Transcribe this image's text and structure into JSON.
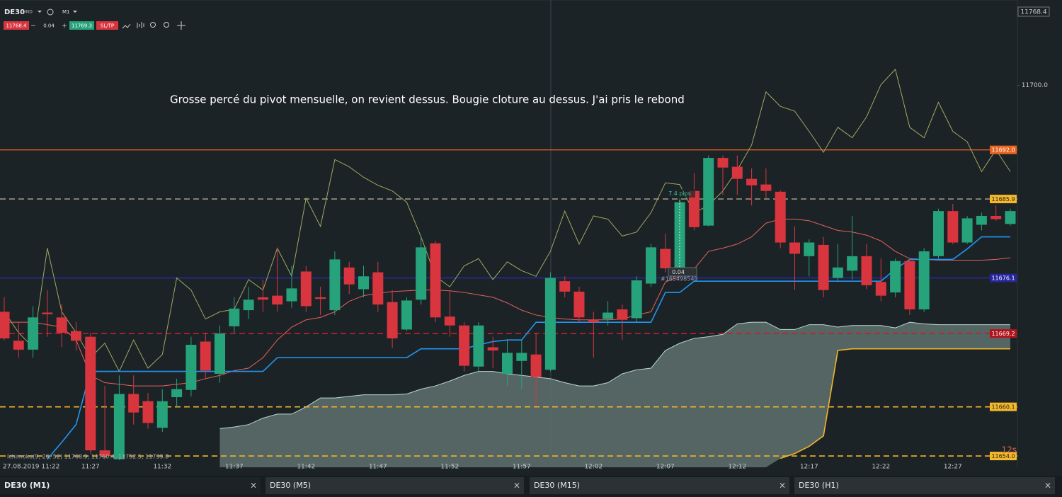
{
  "toolbar": {
    "symbol": "DE30",
    "market": "IND",
    "timeframe": "M1",
    "sell_price": "11768.4",
    "minus": "−",
    "volume": "0.04",
    "plus": "+",
    "buy_price": "11769.3",
    "sltp": "SL/TP"
  },
  "chart_data": {
    "type": "candlestick",
    "annotation": "Grosse percé du pivot mensuelle, on revient dessus. Bougie cloture au dessus. J'ai pris le rebond",
    "indicator_legend": "Ichimoku(9, 26, 52) 11768.9, 11760.4, 11752.5, 11739.8",
    "price_label": "11768.4",
    "countdown": "12s",
    "trade": {
      "pips": "7.4 pips",
      "volume": "0.04",
      "id": "#165498549"
    },
    "up_color": "#26a37a",
    "down_color": "#d9353f",
    "categories": [
      null,
      "27.08.2019 11:22",
      null,
      null,
      null,
      null,
      "11:27",
      null,
      null,
      null,
      null,
      "11:32",
      null,
      null,
      null,
      null,
      "11:37",
      null,
      null,
      null,
      null,
      "11:42",
      null,
      null,
      null,
      null,
      "11:47",
      null,
      null,
      null,
      null,
      "11:52",
      null,
      null,
      null,
      null,
      "11:57",
      null,
      null,
      null,
      null,
      "12:02",
      null,
      null,
      null,
      null,
      "12:07",
      null,
      null,
      null,
      null,
      "12:12",
      null,
      null,
      null,
      null,
      "12:17",
      null,
      null,
      null,
      null,
      "12:22",
      null,
      null,
      null,
      null,
      "12:27",
      null,
      null,
      null,
      null
    ],
    "open": [
      11671.9,
      11668.3,
      11667.2,
      11671.8,
      11671.2,
      11669.5,
      11668.8,
      11654.7,
      11653.6,
      11661.7,
      11660.8,
      11657.5,
      11661.3,
      11662.2,
      11668.2,
      11664.2,
      11670.1,
      11672.1,
      11673.7,
      11673.9,
      11673.2,
      11676.9,
      11673.7,
      11672.1,
      11677.4,
      11674.7,
      11676.8,
      11673.1,
      11669.7,
      11673.4,
      11680.4,
      11671.3,
      11670.2,
      11665.1,
      11667.5,
      11664.2,
      11665.8,
      11666.6,
      11664.7,
      11675.7,
      11674.4,
      11670.9,
      11671.0,
      11672.2,
      11671.1,
      11675.4,
      11679.7,
      11677.4,
      11686.9,
      11682.6,
      11691.0,
      11689.9,
      11688.4,
      11687.7,
      11686.8,
      11680.5,
      11678.8,
      11680.2,
      11676.1,
      11677.0,
      11678.8,
      11675.6,
      11674.3,
      11678.2,
      11672.2,
      11678.8,
      11684.4,
      11680.5,
      11682.7,
      11683.8,
      11682.8
    ],
    "high": [
      11673.7,
      11670.6,
      11672.6,
      11674.6,
      11672.8,
      11670.6,
      11669.3,
      11662.7,
      11664.0,
      11664.0,
      11661.8,
      11662.3,
      11663.6,
      11668.8,
      11669.3,
      11670.2,
      11673.7,
      11675.0,
      11675.9,
      11679.8,
      11677.6,
      11677.6,
      11675.0,
      11679.4,
      11678.1,
      11677.6,
      11678.1,
      11674.6,
      11673.7,
      11681.2,
      11680.7,
      11674.6,
      11670.6,
      11670.6,
      11668.8,
      11668.4,
      11668.4,
      11669.3,
      11676.8,
      11676.3,
      11675.0,
      11671.9,
      11673.2,
      11672.8,
      11676.3,
      11680.3,
      11681.6,
      11686.0,
      11689.1,
      11691.3,
      11691.3,
      11691.3,
      11689.7,
      11689.7,
      11687.0,
      11682.5,
      11680.9,
      11681.2,
      11680.3,
      11683.8,
      11680.3,
      11678.5,
      11678.5,
      11678.5,
      11679.8,
      11684.7,
      11685.3,
      11683.8,
      11684.2,
      11685.1,
      11684.7
    ],
    "low": [
      11668.4,
      11666.2,
      11666.2,
      11668.8,
      11667.5,
      11667.1,
      11654.3,
      11653.6,
      11653.5,
      11657.9,
      11657.4,
      11657.0,
      11660.1,
      11661.4,
      11663.6,
      11663.1,
      11669.3,
      11671.0,
      11671.9,
      11671.9,
      11672.4,
      11671.9,
      11671.5,
      11671.5,
      11674.1,
      11673.7,
      11671.9,
      11667.4,
      11669.5,
      11672.8,
      11670.6,
      11668.8,
      11664.5,
      11664.5,
      11664.9,
      11662.7,
      11662.3,
      11660.2,
      11664.5,
      11673.7,
      11670.6,
      11666.2,
      11670.2,
      11668.4,
      11670.6,
      11675.0,
      11676.8,
      11677.2,
      11682.0,
      11682.5,
      11686.4,
      11686.4,
      11685.1,
      11686.0,
      11679.8,
      11674.6,
      11676.3,
      11673.7,
      11675.6,
      11675.9,
      11674.7,
      11673.2,
      11673.7,
      11671.5,
      11671.9,
      11678.5,
      11680.3,
      11680.3,
      11682.0,
      11683.2,
      11682.6
    ],
    "close": [
      11668.6,
      11667.2,
      11671.2,
      11671.6,
      11669.3,
      11668.3,
      11654.7,
      11654.0,
      11661.7,
      11659.4,
      11658.1,
      11660.8,
      11662.3,
      11667.8,
      11664.6,
      11669.2,
      11672.3,
      11673.4,
      11673.4,
      11672.8,
      11674.8,
      11672.6,
      11673.5,
      11678.4,
      11675.3,
      11676.3,
      11672.8,
      11668.6,
      11673.3,
      11679.9,
      11671.2,
      11670.2,
      11665.2,
      11670.2,
      11667.1,
      11666.8,
      11666.8,
      11663.8,
      11676.1,
      11674.4,
      11671.2,
      11670.6,
      11671.8,
      11670.9,
      11675.8,
      11679.9,
      11677.3,
      11685.5,
      11682.4,
      11691.0,
      11689.8,
      11688.4,
      11687.6,
      11686.9,
      11680.5,
      11679.1,
      11680.5,
      11674.6,
      11677.4,
      11678.8,
      11675.2,
      11673.9,
      11678.2,
      11672.2,
      11679.4,
      11684.4,
      11680.5,
      11683.5,
      11683.8,
      11683.4,
      11684.4
    ],
    "cloud": {
      "fill": "#5e716f",
      "upper_color": "#b9d9d3",
      "lower_color": "#f0b429",
      "upper": [
        null,
        null,
        null,
        null,
        null,
        null,
        null,
        null,
        null,
        null,
        null,
        null,
        null,
        null,
        null,
        11657.4,
        11657.6,
        11657.9,
        11658.7,
        11659.2,
        11659.2,
        11660.1,
        11661.2,
        11661.2,
        11661.4,
        11661.6,
        11661.6,
        11661.6,
        11661.7,
        11662.3,
        11662.7,
        11663.3,
        11664.0,
        11664.5,
        11664.5,
        11664.2,
        11664.0,
        11663.8,
        11663.6,
        11663.1,
        11662.7,
        11662.7,
        11663.1,
        11664.2,
        11664.7,
        11664.9,
        11667.1,
        11668.0,
        11668.6,
        11668.8,
        11669.1,
        11670.4,
        11670.6,
        11670.6,
        11669.7,
        11669.7,
        11670.3,
        11670.3,
        11670.0,
        11670.2,
        11670.2,
        11670.2,
        11669.9,
        11670.6,
        11670.4,
        11670.3,
        11670.3,
        11670.3,
        11670.3,
        11670.3,
        11670.3
      ],
      "lower": [
        null,
        null,
        null,
        null,
        null,
        null,
        null,
        null,
        null,
        null,
        null,
        null,
        null,
        null,
        null,
        null,
        null,
        null,
        null,
        null,
        null,
        null,
        null,
        null,
        null,
        null,
        null,
        null,
        null,
        null,
        null,
        null,
        null,
        null,
        null,
        null,
        null,
        null,
        null,
        null,
        null,
        null,
        null,
        null,
        null,
        null,
        null,
        null,
        null,
        null,
        null,
        null,
        null,
        null,
        11653.7,
        11654.3,
        11655.2,
        11656.5,
        11667.1,
        11667.3,
        11667.3,
        11667.3,
        11667.3,
        11667.3,
        11667.3,
        11667.3,
        11667.3,
        11667.3,
        11667.3,
        11667.3,
        11667.3
      ]
    },
    "lines": [
      {
        "color": "#a0a862",
        "width": 1,
        "values": [
          11671.9,
          11669.3,
          11667.5,
          11679.8,
          11671.9,
          11669.3,
          11666.2,
          11668.0,
          11664.5,
          11668.4,
          11664.9,
          11666.6,
          11676.1,
          11674.6,
          11671.0,
          11671.9,
          11672.2,
          11675.9,
          11674.6,
          11679.8,
          11676.3,
          11686.0,
          11682.5,
          11690.8,
          11689.9,
          11688.6,
          11687.6,
          11686.9,
          11685.5,
          11681.2,
          11676.3,
          11675.0,
          11677.6,
          11678.5,
          11675.9,
          11678.1,
          11677.0,
          11676.3,
          11679.4,
          11684.4,
          11680.3,
          11683.8,
          11683.4,
          11681.3,
          11681.8,
          11684.2,
          11687.9,
          11687.7,
          11684.2,
          11685.1,
          11686.9,
          11689.5,
          11692.6,
          11699.2,
          11697.4,
          11696.8,
          11694.3,
          11691.7,
          11694.8,
          11693.5,
          11696.1,
          11700.1,
          11702.0,
          11694.8,
          11693.5,
          11697.9,
          11694.3,
          11693.0,
          11689.3,
          11692.0,
          11689.3
        ]
      },
      {
        "color": "#e2615a",
        "width": 1,
        "values": [
          11670.6,
          11670.6,
          11670.6,
          11670.3,
          11670.0,
          11668.4,
          11664.0,
          11663.1,
          11662.9,
          11662.7,
          11662.7,
          11662.7,
          11662.9,
          11663.1,
          11663.6,
          11664.0,
          11664.6,
          11664.9,
          11666.2,
          11668.4,
          11670.0,
          11670.9,
          11671.2,
          11671.9,
          11673.2,
          11673.9,
          11674.2,
          11674.4,
          11674.5,
          11674.6,
          11674.6,
          11674.5,
          11674.3,
          11674.0,
          11673.7,
          11673.0,
          11672.1,
          11671.5,
          11671.2,
          11671.0,
          11670.9,
          11670.9,
          11670.9,
          11671.0,
          11671.5,
          11671.9,
          11675.6,
          11676.3,
          11677.2,
          11679.4,
          11679.8,
          11680.3,
          11681.2,
          11682.9,
          11683.4,
          11683.4,
          11683.2,
          11682.6,
          11682.0,
          11681.8,
          11681.4,
          11680.7,
          11679.4,
          11678.5,
          11678.4,
          11678.3,
          11678.3,
          11678.3,
          11678.3,
          11678.4,
          11678.6
        ]
      },
      {
        "color": "#2196f3",
        "width": 1.6,
        "values": [
          null,
          null,
          null,
          11653.6,
          11655.7,
          11657.9,
          11664.5,
          11664.5,
          11664.5,
          11664.5,
          11664.5,
          11664.5,
          11664.5,
          11664.5,
          11664.5,
          11664.5,
          11664.5,
          11664.5,
          11664.5,
          11666.2,
          11666.2,
          11666.2,
          11666.2,
          11666.2,
          11666.2,
          11666.2,
          11666.2,
          11666.2,
          11666.2,
          11667.3,
          11667.3,
          11667.3,
          11667.3,
          11667.8,
          11668.2,
          11668.4,
          11668.4,
          11670.6,
          11670.6,
          11670.6,
          11670.6,
          11670.6,
          11670.6,
          11670.6,
          11670.6,
          11670.6,
          11674.3,
          11674.3,
          11675.7,
          11675.7,
          11675.7,
          11675.7,
          11675.7,
          11675.7,
          11675.7,
          11675.7,
          11675.7,
          11675.7,
          11675.7,
          11675.7,
          11675.7,
          11675.7,
          11677.2,
          11678.4,
          11678.4,
          11678.4,
          11678.4,
          11679.7,
          11681.2,
          11681.2,
          11681.2
        ]
      }
    ],
    "levels": [
      {
        "value": 11692,
        "label": "11692.0",
        "color": "#e05a1e",
        "box": "#e8641e",
        "text_color": "#ffffff",
        "dash": false
      },
      {
        "value": 11685.9,
        "color": "#9b9480",
        "box": "#f5b82a",
        "text_color": "#222222",
        "dash": true
      },
      {
        "value": 11676.1,
        "color": "#2a2aa8",
        "box": "#25259c",
        "text_color": "#ffffff",
        "dash": false
      },
      {
        "value": 11669.2,
        "color": "#c81e28",
        "box": "#b0141c",
        "text_color": "#ffffff",
        "dash": true
      },
      {
        "value": 11660.1,
        "color": "#f0b429",
        "box": "#f5b82a",
        "text_color": "#222222",
        "dash": true
      },
      {
        "value": 11654,
        "label": "11654.0",
        "color": "#f0b429",
        "box": "#f5b82a",
        "text_color": "#222222",
        "dash": true
      }
    ],
    "ylim": [
      11652.6,
      11710.6
    ],
    "yticks": [
      {
        "value": 11700,
        "label": "11700.0"
      }
    ]
  },
  "tabs": [
    {
      "title": "DE30 (M1)",
      "close": "×"
    },
    {
      "title": "DE30 (M5)",
      "close": "×"
    },
    {
      "title": "DE30 (M15)",
      "close": "×"
    },
    {
      "title": "DE30 (H1)",
      "close": "×"
    }
  ]
}
